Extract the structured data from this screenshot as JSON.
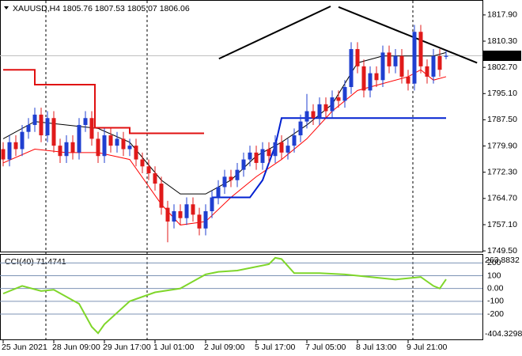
{
  "chart_data": [
    {
      "type": "candlestick",
      "symbol": "XAUUSD,H4",
      "up_color": "#1f3fd0",
      "down_color": "#e01a1a",
      "xlim": [
        -0.5,
        75.75
      ],
      "ylim": [
        1749.3,
        1822.0
      ],
      "yticks": [
        {
          "value": 1817.9,
          "label": "1817.90"
        },
        {
          "value": 1810.3,
          "label": "1810.30"
        },
        {
          "value": 1802.7,
          "label": "1802.70"
        },
        {
          "value": 1795.1,
          "label": "1795.10"
        },
        {
          "value": 1787.5,
          "label": "1787.50"
        },
        {
          "value": 1779.9,
          "label": "1779.90"
        },
        {
          "value": 1772.3,
          "label": "1772.30"
        },
        {
          "value": 1764.7,
          "label": "1764.70"
        },
        {
          "value": 1757.1,
          "label": "1757.10"
        },
        {
          "value": 1749.5,
          "label": "1749.50"
        }
      ],
      "xticks": [
        {
          "value": 0,
          "label": "25 Jun 2021"
        },
        {
          "value": 8,
          "label": "28 Jun 09:00"
        },
        {
          "value": 16,
          "label": "29 Jun 17:00"
        },
        {
          "value": 24,
          "label": "1 Jul 01:00"
        },
        {
          "value": 32,
          "label": "2 Jul 09:00"
        },
        {
          "value": 40,
          "label": "5 Jul 17:00"
        },
        {
          "value": 48,
          "label": "7 Jul 05:00"
        },
        {
          "value": 56,
          "label": "8 Jul 13:00"
        },
        {
          "value": 64,
          "label": "9 Jul 21:00"
        }
      ],
      "open": [
        1779,
        1776,
        1781,
        1779,
        1784,
        1786,
        1789,
        1783,
        1788,
        1780,
        1777,
        1781,
        1778,
        1786,
        1788,
        1782,
        1777,
        1783,
        1780,
        1782,
        1779,
        1780,
        1776,
        1774,
        1772,
        1769,
        1762,
        1758,
        1761,
        1759,
        1763,
        1760,
        1756,
        1761,
        1765,
        1768,
        1771,
        1770,
        1773,
        1776,
        1778,
        1775,
        1779,
        1777,
        1781,
        1778,
        1780,
        1783,
        1787,
        1790,
        1788,
        1792,
        1790,
        1794,
        1793,
        1797,
        1808,
        1803,
        1796,
        1801,
        1799,
        1807,
        1803,
        1806,
        1800,
        1798,
        1813,
        1803,
        1800,
        1806,
        1805.76
      ],
      "high": [
        1781,
        1783,
        1783,
        1786,
        1788,
        1791,
        1791,
        1790,
        1790,
        1782,
        1783,
        1783,
        1788,
        1790,
        1790,
        1784,
        1785,
        1785,
        1784,
        1784,
        1782,
        1782,
        1778,
        1776,
        1774,
        1771,
        1764,
        1763,
        1763,
        1765,
        1765,
        1762,
        1763,
        1767,
        1770,
        1773,
        1773,
        1775,
        1778,
        1780,
        1780,
        1781,
        1781,
        1783,
        1783,
        1782,
        1785,
        1789,
        1795,
        1792,
        1794,
        1794,
        1796,
        1796,
        1799,
        1810,
        1810,
        1805,
        1803,
        1803,
        1809,
        1809,
        1808,
        1808,
        1802,
        1815,
        1815,
        1805,
        1808,
        1808,
        1807.53
      ],
      "low": [
        1774,
        1774,
        1777,
        1777,
        1782,
        1784,
        1781,
        1781,
        1778,
        1775,
        1775,
        1776,
        1776,
        1784,
        1780,
        1775,
        1775,
        1778,
        1778,
        1777,
        1777,
        1774,
        1772,
        1770,
        1767,
        1760,
        1752,
        1756,
        1757,
        1757,
        1758,
        1754,
        1754,
        1759,
        1763,
        1766,
        1768,
        1768,
        1771,
        1774,
        1773,
        1773,
        1775,
        1775,
        1776,
        1776,
        1778,
        1781,
        1785,
        1786,
        1786,
        1788,
        1788,
        1791,
        1791,
        1795,
        1801,
        1794,
        1794,
        1797,
        1797,
        1801,
        1801,
        1798,
        1796,
        1796,
        1801,
        1798,
        1798,
        1800,
        1805.07
      ],
      "close": [
        1776,
        1781,
        1779,
        1784,
        1786,
        1789,
        1783,
        1788,
        1780,
        1777,
        1781,
        1778,
        1786,
        1788,
        1782,
        1777,
        1783,
        1780,
        1782,
        1779,
        1780,
        1776,
        1774,
        1772,
        1769,
        1762,
        1758,
        1761,
        1759,
        1763,
        1760,
        1756,
        1761,
        1765,
        1768,
        1771,
        1770,
        1773,
        1776,
        1778,
        1775,
        1779,
        1777,
        1781,
        1778,
        1780,
        1783,
        1787,
        1790,
        1788,
        1792,
        1790,
        1794,
        1793,
        1797,
        1808,
        1803,
        1796,
        1801,
        1799,
        1807,
        1803,
        1806,
        1800,
        1798,
        1813,
        1803,
        1800,
        1806,
        1802,
        1806.06
      ],
      "overlays": [
        {
          "color": "#000000",
          "x": [
            0,
            5,
            10,
            15,
            20,
            25,
            28,
            32,
            36,
            40,
            44,
            48,
            52,
            56,
            60,
            64,
            68,
            70
          ],
          "values": [
            1782,
            1787,
            1786,
            1785,
            1781,
            1770,
            1766,
            1766,
            1770,
            1777,
            1781,
            1786,
            1792,
            1804,
            1806,
            1806,
            1806,
            1807
          ]
        },
        {
          "color": "#ff0000",
          "x": [
            0,
            5,
            10,
            15,
            20,
            25,
            28,
            32,
            36,
            40,
            44,
            48,
            52,
            56,
            60,
            64,
            66,
            68,
            70
          ],
          "values": [
            1775,
            1779,
            1778,
            1778,
            1776,
            1763,
            1757,
            1758,
            1765,
            1771,
            1776,
            1782,
            1790,
            1796,
            1798,
            1800,
            1802,
            1799,
            1800
          ]
        },
        {
          "color": "#e01010",
          "x": [
            0,
            5,
            5,
            14.5,
            14.5,
            20,
            20,
            31.75
          ],
          "values": [
            1802,
            1802,
            1797.7,
            1797.7,
            1785.2,
            1785.2,
            1783.6,
            1783.6
          ]
        },
        {
          "color": "#0020d0",
          "x": [
            33,
            39,
            41,
            43,
            44,
            70
          ],
          "values": [
            1765,
            1765,
            1770,
            1780,
            1788,
            1788
          ]
        },
        {
          "color": "#000000",
          "x": [
            34.1,
            51.75
          ],
          "values": [
            1805.2,
            1820.4
          ]
        },
        {
          "color": "#000000",
          "x": [
            53,
            74.9
          ],
          "values": [
            1820.2,
            1804
          ]
        }
      ]
    },
    {
      "type": "line",
      "name": "CCI(40)",
      "color": "#7fd62a",
      "ylim": [
        -404.3298,
        263.8832
      ],
      "yticks": [
        200,
        100,
        {
          "value": 0,
          "label": "0.00"
        },
        -100,
        -200
      ],
      "x": [
        0,
        3,
        6,
        8,
        12,
        14,
        15,
        16,
        20,
        24,
        28,
        32,
        34,
        37,
        42,
        43,
        44,
        46,
        50,
        54,
        58,
        62,
        66,
        68,
        69,
        70
      ],
      "values": [
        -40,
        20,
        -20,
        -10,
        -120,
        -300,
        -350,
        -280,
        -100,
        -30,
        0,
        110,
        130,
        140,
        190,
        240,
        230,
        120,
        120,
        110,
        90,
        70,
        90,
        20,
        0,
        71.4741
      ]
    }
  ]
}
